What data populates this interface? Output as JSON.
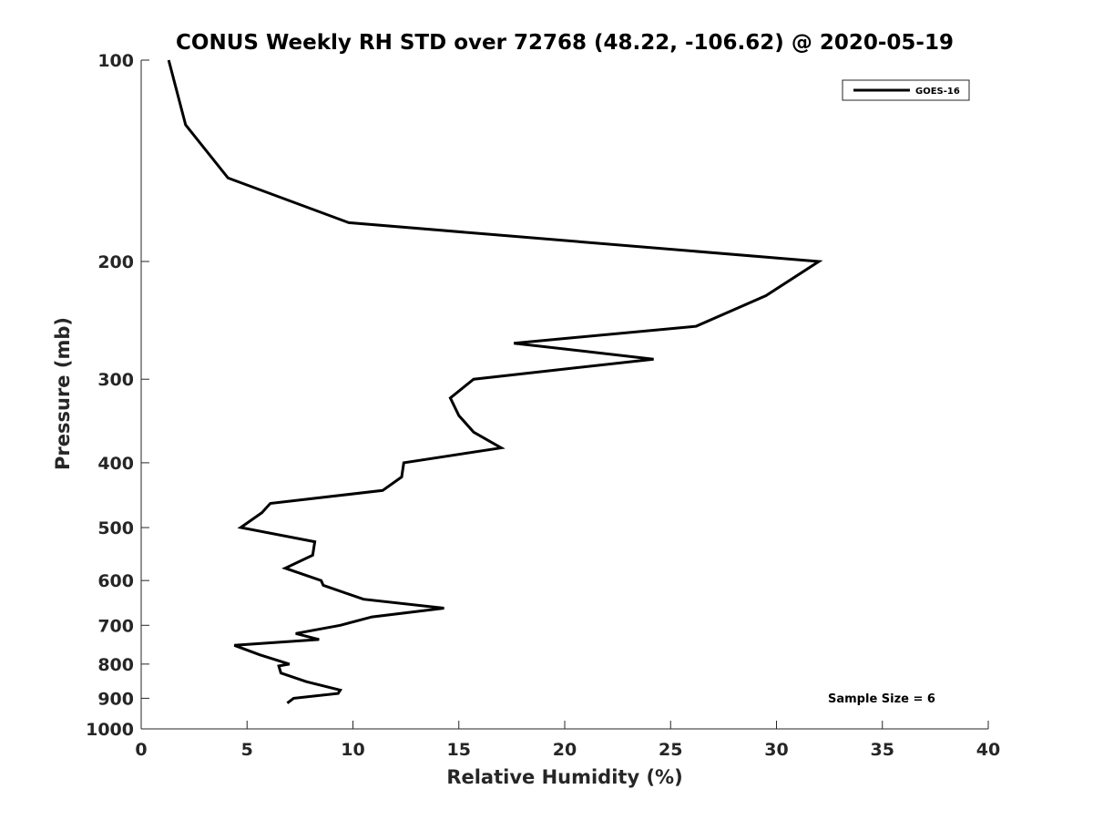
{
  "chart_data": {
    "type": "line",
    "title": "CONUS Weekly RH STD over 72768 (48.22, -106.62) @ 2020-05-19",
    "xlabel": "Relative Humidity (%)",
    "ylabel": "Pressure (mb)",
    "xlim": [
      0,
      40
    ],
    "ylim": [
      100,
      1000
    ],
    "y_scale": "log",
    "y_reversed": true,
    "xticks": [
      0,
      5,
      10,
      15,
      20,
      25,
      30,
      35,
      40
    ],
    "yticks": [
      100,
      200,
      300,
      400,
      500,
      600,
      700,
      800,
      900,
      1000
    ],
    "grid": false,
    "legend_position": "top-right",
    "annotation": "Sample Size = 6",
    "colors": {
      "line": "#000000",
      "axis": "#262626"
    },
    "series": [
      {
        "name": "GOES-16",
        "x": [
          1.3,
          2.1,
          4.1,
          9.8,
          32.0,
          29.5,
          26.2,
          17.6,
          24.2,
          15.7,
          14.6,
          15.0,
          15.7,
          17.0,
          12.4,
          12.3,
          11.4,
          6.1,
          5.7,
          4.7,
          8.2,
          8.1,
          6.8,
          8.5,
          8.6,
          10.5,
          14.3,
          10.9,
          9.4,
          7.3,
          8.4,
          4.4,
          5.6,
          7.0,
          6.5,
          6.6,
          7.8,
          9.4,
          9.3,
          7.2,
          6.9
        ],
        "y": [
          100,
          125,
          150,
          175,
          200,
          225,
          250,
          265,
          280,
          300,
          320,
          340,
          360,
          380,
          400,
          420,
          440,
          460,
          475,
          500,
          525,
          550,
          575,
          600,
          610,
          640,
          660,
          680,
          700,
          720,
          735,
          750,
          775,
          800,
          805,
          825,
          850,
          875,
          885,
          900,
          915
        ]
      }
    ]
  }
}
